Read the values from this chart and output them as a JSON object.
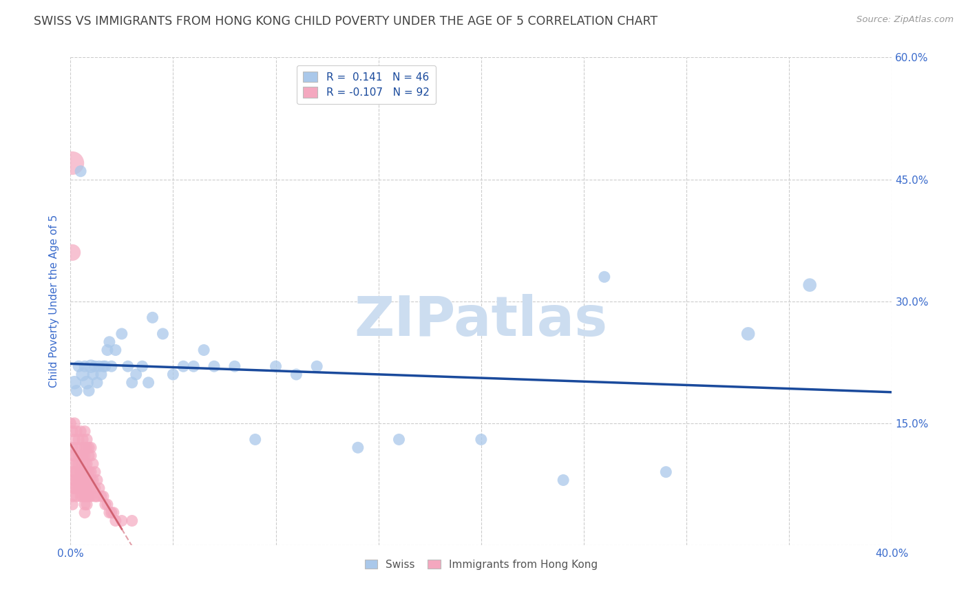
{
  "title": "SWISS VS IMMIGRANTS FROM HONG KONG CHILD POVERTY UNDER THE AGE OF 5 CORRELATION CHART",
  "source": "Source: ZipAtlas.com",
  "ylabel": "Child Poverty Under the Age of 5",
  "xlim": [
    0.0,
    0.4
  ],
  "ylim": [
    0.0,
    0.6
  ],
  "xticks": [
    0.0,
    0.05,
    0.1,
    0.15,
    0.2,
    0.25,
    0.3,
    0.35,
    0.4
  ],
  "yticks": [
    0.0,
    0.15,
    0.3,
    0.45,
    0.6
  ],
  "background_color": "#ffffff",
  "grid_color": "#cccccc",
  "watermark": "ZIPatlas",
  "watermark_color": "#ccddf0",
  "swiss_color": "#aac8ea",
  "hk_color": "#f4a8bf",
  "swiss_line_color": "#1a4a9c",
  "hk_line_color": "#d06070",
  "swiss_R": 0.141,
  "swiss_N": 46,
  "hk_R": -0.107,
  "hk_N": 92,
  "title_color": "#444444",
  "axis_label_color": "#3a6bcc",
  "tick_label_color": "#3a6bcc",
  "swiss_x": [
    0.002,
    0.003,
    0.004,
    0.005,
    0.006,
    0.007,
    0.008,
    0.009,
    0.01,
    0.011,
    0.012,
    0.013,
    0.014,
    0.015,
    0.016,
    0.017,
    0.018,
    0.019,
    0.02,
    0.022,
    0.025,
    0.028,
    0.03,
    0.032,
    0.035,
    0.038,
    0.04,
    0.045,
    0.05,
    0.055,
    0.06,
    0.065,
    0.07,
    0.08,
    0.09,
    0.1,
    0.11,
    0.12,
    0.14,
    0.16,
    0.2,
    0.24,
    0.26,
    0.29,
    0.33,
    0.36
  ],
  "swiss_y": [
    0.2,
    0.19,
    0.22,
    0.46,
    0.21,
    0.22,
    0.2,
    0.19,
    0.22,
    0.21,
    0.22,
    0.2,
    0.22,
    0.21,
    0.22,
    0.22,
    0.24,
    0.25,
    0.22,
    0.24,
    0.26,
    0.22,
    0.2,
    0.21,
    0.22,
    0.2,
    0.28,
    0.26,
    0.21,
    0.22,
    0.22,
    0.24,
    0.22,
    0.22,
    0.13,
    0.22,
    0.21,
    0.22,
    0.12,
    0.13,
    0.13,
    0.08,
    0.33,
    0.09,
    0.26,
    0.32
  ],
  "swiss_size": [
    200,
    150,
    150,
    150,
    200,
    150,
    200,
    150,
    200,
    150,
    150,
    150,
    150,
    150,
    150,
    150,
    150,
    150,
    150,
    150,
    150,
    150,
    150,
    150,
    150,
    150,
    150,
    150,
    150,
    150,
    150,
    150,
    150,
    150,
    150,
    150,
    150,
    150,
    150,
    150,
    150,
    150,
    150,
    150,
    200,
    200
  ],
  "hk_x": [
    0.0,
    0.001,
    0.001,
    0.001,
    0.001,
    0.001,
    0.001,
    0.001,
    0.001,
    0.001,
    0.002,
    0.002,
    0.002,
    0.002,
    0.002,
    0.002,
    0.003,
    0.003,
    0.003,
    0.003,
    0.003,
    0.003,
    0.003,
    0.004,
    0.004,
    0.004,
    0.004,
    0.004,
    0.005,
    0.005,
    0.005,
    0.005,
    0.005,
    0.005,
    0.005,
    0.006,
    0.006,
    0.006,
    0.006,
    0.006,
    0.006,
    0.006,
    0.007,
    0.007,
    0.007,
    0.007,
    0.007,
    0.007,
    0.007,
    0.007,
    0.007,
    0.007,
    0.008,
    0.008,
    0.008,
    0.008,
    0.008,
    0.008,
    0.008,
    0.008,
    0.009,
    0.009,
    0.009,
    0.009,
    0.009,
    0.009,
    0.01,
    0.01,
    0.01,
    0.01,
    0.01,
    0.01,
    0.011,
    0.011,
    0.012,
    0.012,
    0.012,
    0.013,
    0.013,
    0.014,
    0.015,
    0.016,
    0.017,
    0.018,
    0.019,
    0.02,
    0.021,
    0.022,
    0.025,
    0.03,
    0.001,
    0.001
  ],
  "hk_y": [
    0.15,
    0.12,
    0.14,
    0.11,
    0.1,
    0.09,
    0.08,
    0.07,
    0.06,
    0.05,
    0.15,
    0.13,
    0.11,
    0.09,
    0.08,
    0.07,
    0.14,
    0.12,
    0.1,
    0.09,
    0.08,
    0.07,
    0.06,
    0.13,
    0.11,
    0.1,
    0.08,
    0.07,
    0.14,
    0.12,
    0.11,
    0.09,
    0.08,
    0.07,
    0.06,
    0.13,
    0.11,
    0.1,
    0.09,
    0.08,
    0.07,
    0.06,
    0.14,
    0.12,
    0.11,
    0.1,
    0.09,
    0.08,
    0.07,
    0.06,
    0.05,
    0.04,
    0.13,
    0.12,
    0.1,
    0.09,
    0.08,
    0.07,
    0.06,
    0.05,
    0.12,
    0.11,
    0.09,
    0.08,
    0.07,
    0.06,
    0.12,
    0.11,
    0.09,
    0.08,
    0.07,
    0.06,
    0.1,
    0.08,
    0.09,
    0.07,
    0.06,
    0.08,
    0.06,
    0.07,
    0.06,
    0.06,
    0.05,
    0.05,
    0.04,
    0.04,
    0.04,
    0.03,
    0.03,
    0.03,
    0.47,
    0.36
  ],
  "hk_size": [
    150,
    150,
    150,
    150,
    150,
    150,
    150,
    150,
    150,
    150,
    150,
    150,
    150,
    150,
    150,
    150,
    150,
    150,
    150,
    150,
    150,
    150,
    150,
    150,
    150,
    150,
    150,
    150,
    150,
    150,
    150,
    150,
    150,
    150,
    150,
    150,
    150,
    150,
    150,
    150,
    150,
    150,
    150,
    150,
    150,
    150,
    150,
    150,
    150,
    150,
    150,
    150,
    150,
    150,
    150,
    150,
    150,
    150,
    150,
    150,
    150,
    150,
    150,
    150,
    150,
    150,
    150,
    150,
    150,
    150,
    150,
    150,
    150,
    150,
    150,
    150,
    150,
    150,
    150,
    150,
    150,
    150,
    150,
    150,
    150,
    150,
    150,
    150,
    150,
    150,
    600,
    300
  ]
}
